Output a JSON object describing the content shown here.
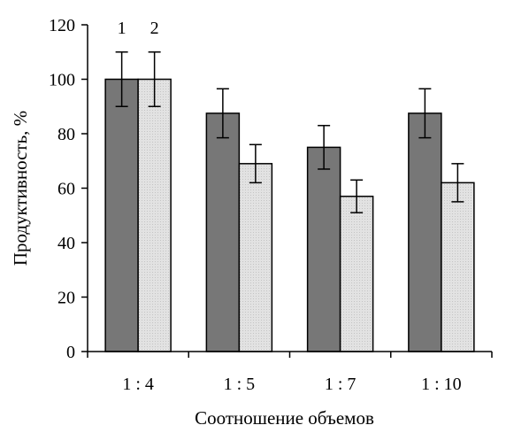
{
  "chart_data": {
    "type": "bar",
    "xlabel": "Соотношение объемов",
    "ylabel": "Продуктивность, %",
    "ylim": [
      0,
      120
    ],
    "yticks": [
      0,
      20,
      40,
      60,
      80,
      100,
      120
    ],
    "categories": [
      "1 : 4",
      "1 : 5",
      "1 : 7",
      "1 : 10"
    ],
    "series": [
      {
        "name": "1",
        "values": [
          100,
          87.5,
          75,
          87.5
        ],
        "errors": [
          10,
          9,
          8,
          9
        ],
        "color": "#777777"
      },
      {
        "name": "2",
        "values": [
          100,
          69,
          57,
          62
        ],
        "errors": [
          10,
          7,
          6,
          7
        ],
        "color": "#e2e2e2"
      }
    ],
    "grid": false,
    "legend": "series numbers printed above the first bar group"
  }
}
